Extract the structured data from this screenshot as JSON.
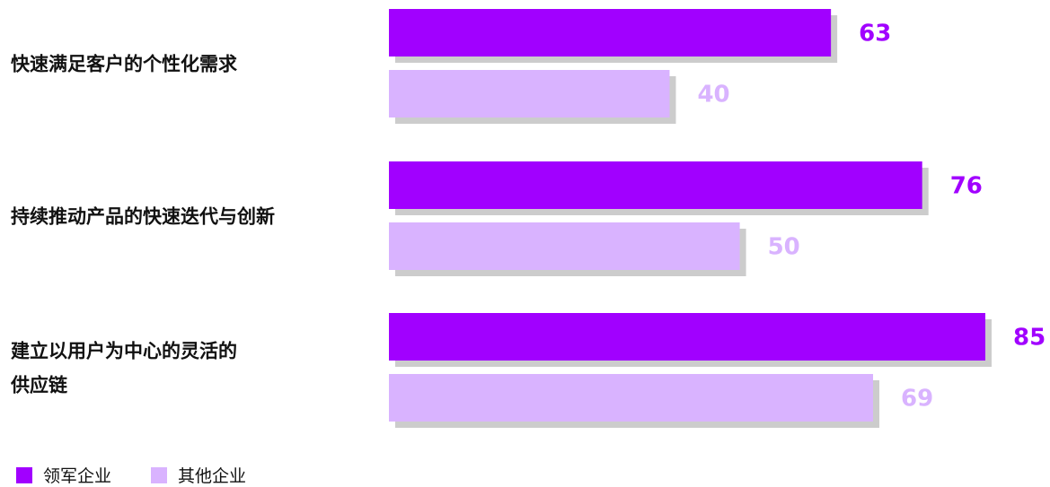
{
  "chart_data": {
    "type": "bar",
    "orientation": "horizontal",
    "categories": [
      [
        "快速满足客户的个性化需求"
      ],
      [
        "持续推动产品的快速迭代与创新"
      ],
      [
        "建立以用户为中心的灵活的",
        "供应链"
      ]
    ],
    "series": [
      {
        "name": "领军企业",
        "values": [
          63,
          76,
          85
        ],
        "color": "#A100FF"
      },
      {
        "name": "其他企业",
        "values": [
          40,
          50,
          69
        ],
        "color": "#D9B3FF"
      }
    ],
    "value_label_colors": [
      "#A100FF",
      "#D9B3FF"
    ],
    "shadow_color": "#CCCCCC",
    "xlim": [
      0,
      85
    ],
    "grid": false,
    "legend_position": "bottom-left",
    "title": "",
    "xlabel": "",
    "ylabel": ""
  }
}
